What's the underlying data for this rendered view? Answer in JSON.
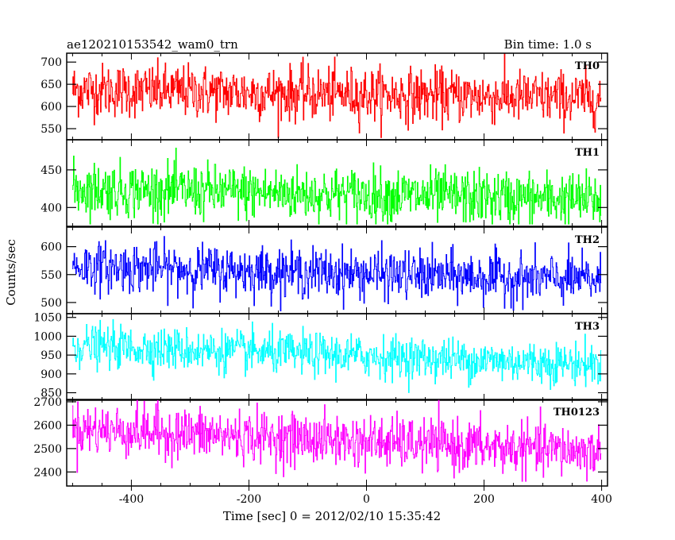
{
  "header": {
    "left_title": "ae120210153542_wam0_trn",
    "right_title": "Bin time: 1.0 s"
  },
  "chart_data": {
    "type": "line",
    "title": "ae120210153542_wam0_trn",
    "subtitle": "Bin time: 1.0 s",
    "xlabel": "Time [sec] 0 = 2012/02/10 15:35:42",
    "ylabel": "Counts/sec",
    "xlim": [
      -510,
      410
    ],
    "xticks": [
      -400,
      -200,
      0,
      200,
      400
    ],
    "x_start": -500,
    "x_end": 399,
    "x_step": 1,
    "grid": false,
    "legend": "none",
    "panels": [
      {
        "name": "TH0",
        "color": "#ff0000",
        "ylim": [
          525,
          720
        ],
        "yticks": [
          550,
          600,
          650,
          700
        ],
        "level_start": 638,
        "level_end": 618,
        "noise": 30,
        "range": [
          530,
          720
        ]
      },
      {
        "name": "TH1",
        "color": "#00ff00",
        "ylim": [
          375,
          490
        ],
        "yticks": [
          400,
          450
        ],
        "level_start": 425,
        "level_end": 410,
        "noise": 18,
        "range": [
          378,
          490
        ]
      },
      {
        "name": "TH2",
        "color": "#0000ff",
        "ylim": [
          480,
          635
        ],
        "yticks": [
          500,
          550,
          600
        ],
        "level_start": 565,
        "level_end": 540,
        "noise": 22,
        "range": [
          485,
          632
        ]
      },
      {
        "name": "TH3",
        "color": "#00ffff",
        "ylim": [
          830,
          1060
        ],
        "yticks": [
          850,
          900,
          950,
          1000,
          1050
        ],
        "level_start": 975,
        "level_end": 925,
        "noise": 28,
        "range": [
          840,
          1060
        ]
      },
      {
        "name": "TH0123",
        "color": "#ff00ff",
        "ylim": [
          2340,
          2710
        ],
        "yticks": [
          2400,
          2500,
          2600,
          2700
        ],
        "level_start": 2585,
        "level_end": 2485,
        "noise": 55,
        "range": [
          2360,
          2715
        ]
      }
    ]
  }
}
